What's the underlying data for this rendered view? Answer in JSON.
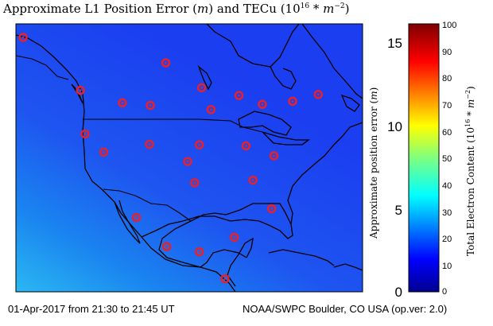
{
  "title": {
    "prefix": "Approximate L1 Position Error (",
    "var_m": "m",
    "middle": ") and TECu (10",
    "exp": "16",
    "suffix": " * m",
    "exp2": "−2",
    "close": ")"
  },
  "footer": {
    "left": "01-Apr-2017 from 21:30 to 21:45 UT",
    "right": "NOAA/SWPC Boulder, CO USA (op.ver: 2.0)"
  },
  "error_axis": {
    "label_prefix": "Approximate position error (",
    "label_var": "m",
    "label_close": ")",
    "ticks": [
      "15",
      "10",
      "5",
      "0"
    ],
    "range": [
      0,
      16
    ]
  },
  "tec_colorbar": {
    "label_prefix": "Total Electron Content (10",
    "label_exp": "16",
    "label_mid": " * m",
    "label_exp2": "−2",
    "label_close": ")",
    "ticks": [
      "100",
      "90",
      "80",
      "70",
      "60",
      "50",
      "40",
      "30",
      "20",
      "10",
      "0"
    ],
    "range": [
      0,
      100
    ],
    "colormap": "jet"
  },
  "map": {
    "region": "North America",
    "ocean_color": "#1b3ff0",
    "gradient_low_color": "#2ab8f2",
    "marker_color": "#e8202a",
    "stations": [
      {
        "lon": -135.3,
        "lat": 59.5
      },
      {
        "lon": -123.0,
        "lat": 49.3
      },
      {
        "lon": -104.7,
        "lat": 54.6
      },
      {
        "lon": -97.0,
        "lat": 49.8
      },
      {
        "lon": -89.0,
        "lat": 48.3
      },
      {
        "lon": -114.0,
        "lat": 46.9
      },
      {
        "lon": -108.0,
        "lat": 46.4
      },
      {
        "lon": -95.0,
        "lat": 45.6
      },
      {
        "lon": -84.0,
        "lat": 46.6
      },
      {
        "lon": -77.5,
        "lat": 47.2
      },
      {
        "lon": -72.0,
        "lat": 48.5
      },
      {
        "lon": -122.0,
        "lat": 40.9
      },
      {
        "lon": -118.0,
        "lat": 37.4
      },
      {
        "lon": -108.2,
        "lat": 38.9
      },
      {
        "lon": -97.5,
        "lat": 38.8
      },
      {
        "lon": -87.5,
        "lat": 38.6
      },
      {
        "lon": -81.5,
        "lat": 36.7
      },
      {
        "lon": -100.0,
        "lat": 35.6
      },
      {
        "lon": -98.5,
        "lat": 31.5
      },
      {
        "lon": -86.0,
        "lat": 32.0
      },
      {
        "lon": -82.0,
        "lat": 26.5
      },
      {
        "lon": -111.0,
        "lat": 24.8
      },
      {
        "lon": -104.5,
        "lat": 19.2
      },
      {
        "lon": -97.5,
        "lat": 18.2
      },
      {
        "lon": -90.0,
        "lat": 21.0
      },
      {
        "lon": -92.0,
        "lat": 13.0
      }
    ]
  }
}
